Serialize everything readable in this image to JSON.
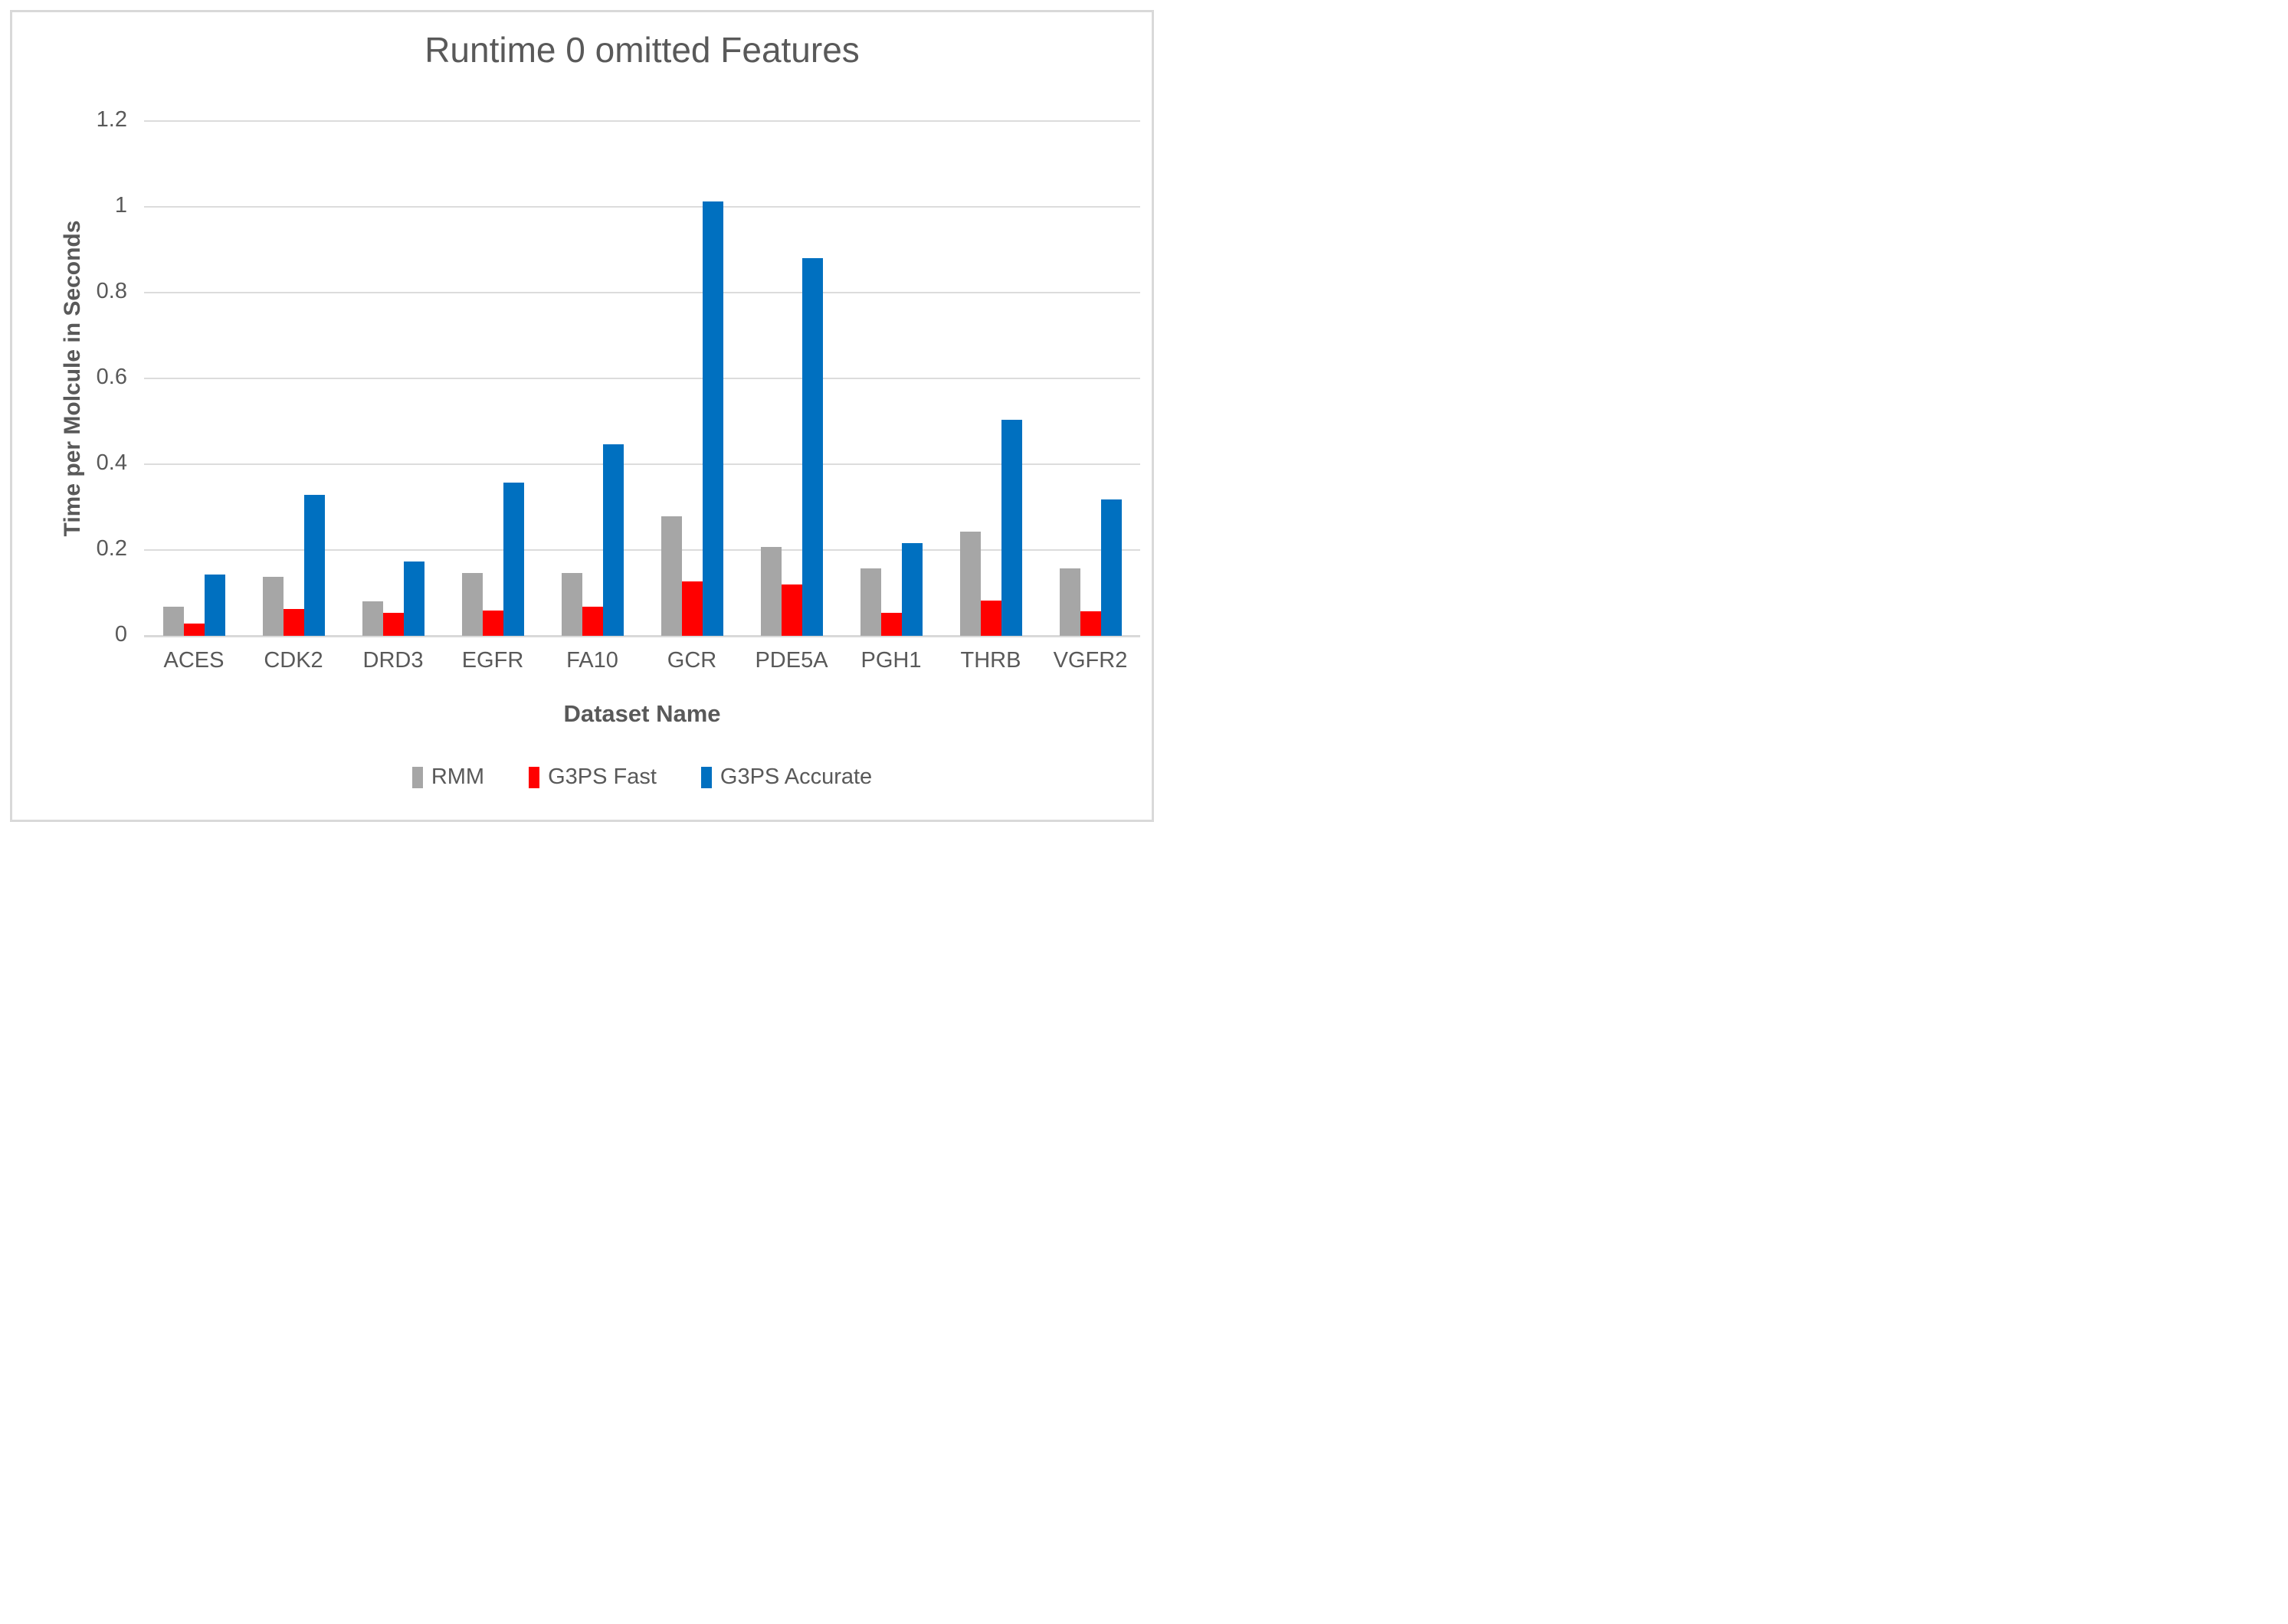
{
  "chart_data": {
    "type": "bar",
    "title": "Runtime 0 omitted Features",
    "xlabel": "Dataset Name",
    "ylabel": "Time per Molcule in Seconds",
    "ylim": [
      0,
      1.2
    ],
    "yticks": [
      0,
      0.2,
      0.4,
      0.6,
      0.8,
      1,
      1.2
    ],
    "ytick_labels": [
      "0",
      "0.2",
      "0.4",
      "0.6",
      "0.8",
      "1",
      "1.2"
    ],
    "grid": true,
    "legend_position": "bottom",
    "categories": [
      "ACES",
      "CDK2",
      "DRD3",
      "EGFR",
      "FA10",
      "GCR",
      "PDE5A",
      "PGH1",
      "THRB",
      "VGFR2"
    ],
    "series": [
      {
        "name": "RMM",
        "color": "#A6A6A6",
        "values": [
          0.068,
          0.137,
          0.08,
          0.146,
          0.147,
          0.278,
          0.208,
          0.157,
          0.242,
          0.157
        ]
      },
      {
        "name": "G3PS Fast",
        "color": "#FF0000",
        "values": [
          0.029,
          0.063,
          0.053,
          0.059,
          0.068,
          0.127,
          0.119,
          0.054,
          0.083,
          0.058
        ]
      },
      {
        "name": "G3PS Accurate",
        "color": "#0070C0",
        "values": [
          0.142,
          0.328,
          0.174,
          0.357,
          0.446,
          1.012,
          0.88,
          0.216,
          0.503,
          0.317
        ]
      }
    ]
  },
  "colors": {
    "text": "#595959",
    "gridline": "#DCDCDC",
    "axis_line": "#D9D9D9",
    "frame_border": "#D9D9D9",
    "background": "#FFFFFF"
  }
}
